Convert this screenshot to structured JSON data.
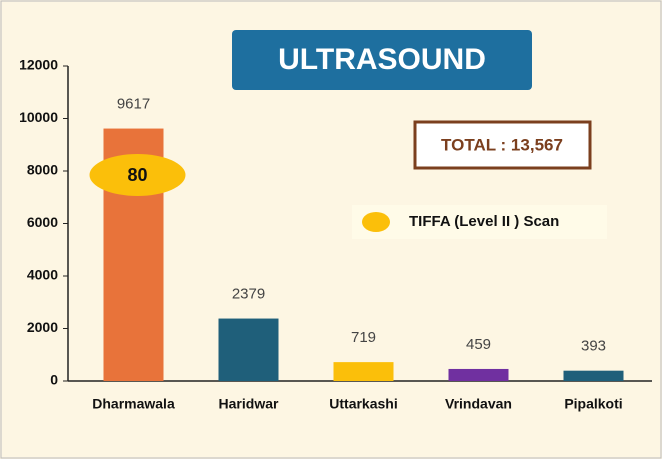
{
  "chart_data": {
    "type": "bar",
    "title": "ULTRASOUND",
    "categories": [
      "Dharmawala",
      "Haridwar",
      "Uttarkashi",
      "Vrindavan",
      "Pipalkoti"
    ],
    "values": [
      9617,
      2379,
      719,
      459,
      393
    ],
    "colors": [
      "#e8733a",
      "#1f5f7a",
      "#fbbf0a",
      "#7030a0",
      "#1f5f7a"
    ],
    "ylim": [
      0,
      12000
    ],
    "yticks": [
      0,
      2000,
      4000,
      6000,
      8000,
      10000,
      12000
    ],
    "grid": false,
    "total": "TOTAL :  13,567",
    "annotation": {
      "category": "Dharmawala",
      "value": 80,
      "color": "#fbbf0a"
    },
    "legend": {
      "name": "TIFFA (Level II ) Scan",
      "color": "#fbbf0a"
    }
  }
}
